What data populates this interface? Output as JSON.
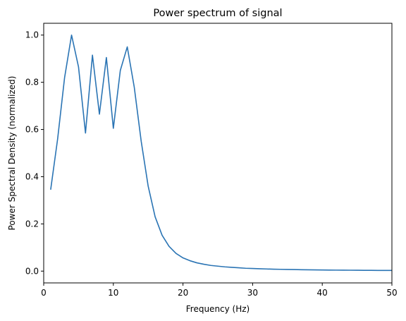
{
  "chart_data": {
    "type": "line",
    "title": "Power spectrum of signal",
    "xlabel": "Frequency (Hz)",
    "ylabel": "Power Spectral Density (normalized)",
    "xlim": [
      0,
      50
    ],
    "ylim": [
      -0.05,
      1.05
    ],
    "xticks": [
      0,
      10,
      20,
      30,
      40,
      50
    ],
    "yticks": [
      0.0,
      0.2,
      0.4,
      0.6,
      0.8,
      1.0
    ],
    "xtick_labels": [
      "0",
      "10",
      "20",
      "30",
      "40",
      "50"
    ],
    "ytick_labels": [
      "0.0",
      "0.2",
      "0.4",
      "0.6",
      "0.8",
      "1.0"
    ],
    "grid": false,
    "legend": "none",
    "series": [
      {
        "color": "#2a74b4",
        "x": [
          1,
          2,
          3,
          4,
          5,
          6,
          7,
          8,
          9,
          10,
          11,
          12,
          13,
          14,
          15,
          16,
          17,
          18,
          19,
          20,
          21,
          22,
          23,
          24,
          25,
          26,
          27,
          28,
          29,
          30,
          31,
          32,
          33,
          34,
          35,
          36,
          37,
          38,
          39,
          40,
          41,
          42,
          43,
          44,
          45,
          46,
          47,
          48,
          49,
          50
        ],
        "y": [
          0.345,
          0.56,
          0.82,
          1.0,
          0.865,
          0.585,
          0.915,
          0.665,
          0.905,
          0.605,
          0.85,
          0.95,
          0.78,
          0.55,
          0.36,
          0.23,
          0.152,
          0.105,
          0.075,
          0.056,
          0.044,
          0.035,
          0.029,
          0.024,
          0.021,
          0.018,
          0.016,
          0.014,
          0.012,
          0.011,
          0.01,
          0.009,
          0.008,
          0.0075,
          0.007,
          0.0065,
          0.006,
          0.0056,
          0.0052,
          0.0048,
          0.0045,
          0.0042,
          0.004,
          0.0038,
          0.0036,
          0.0034,
          0.0032,
          0.003,
          0.0029,
          0.0028
        ]
      }
    ]
  }
}
